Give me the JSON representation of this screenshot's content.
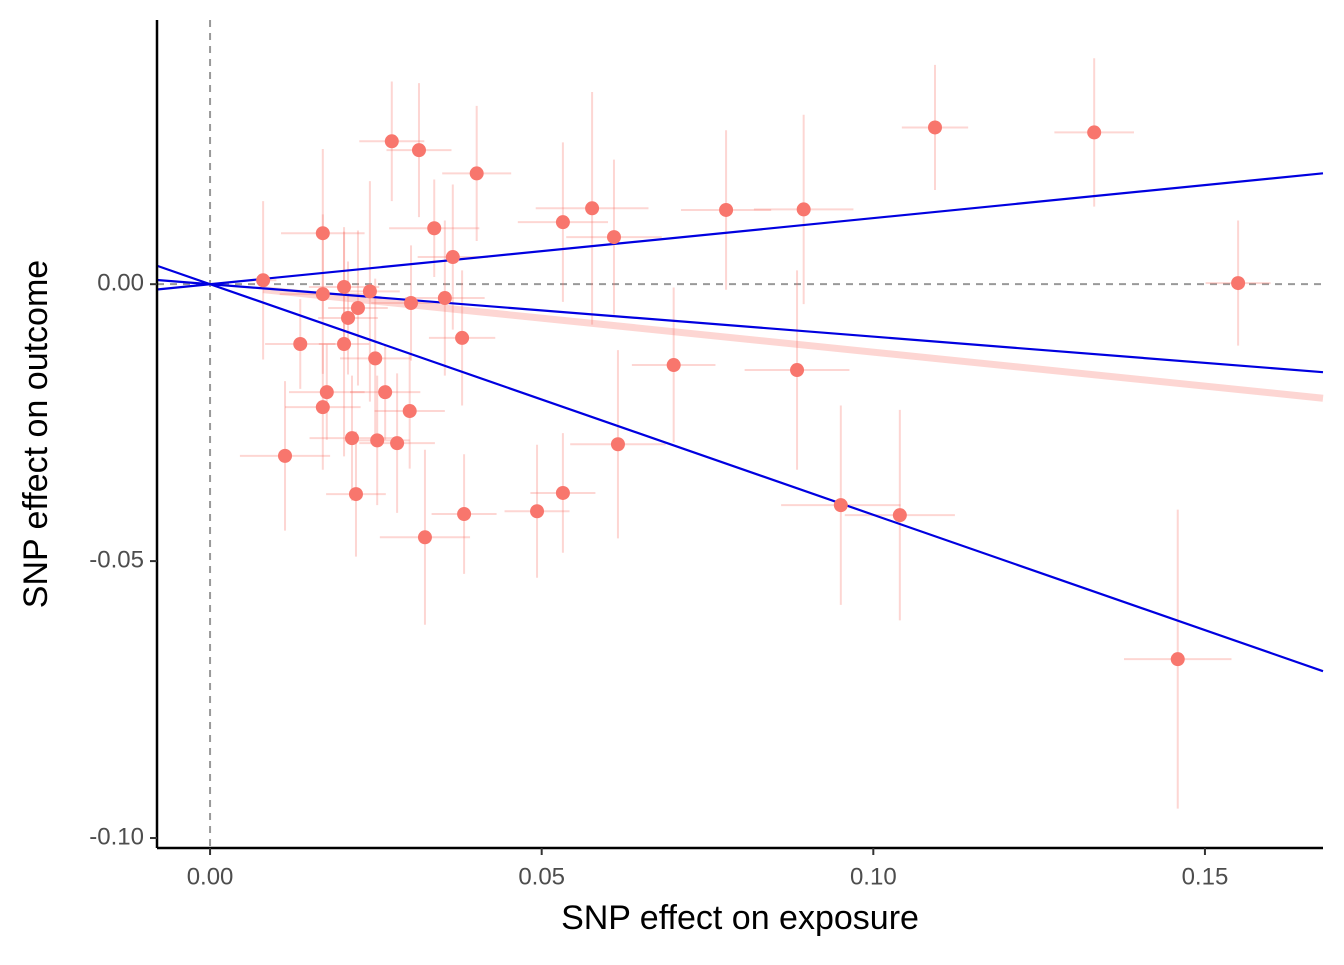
{
  "chart_data": {
    "type": "scatter",
    "x_label": "SNP effect on exposure",
    "y_label": "SNP effect on outcome",
    "xlim": [
      -0.008,
      0.1678
    ],
    "ylim": [
      -0.1018,
      0.0477
    ],
    "xticks": [
      {
        "value": 0,
        "label": "0.00"
      },
      {
        "value": 0.05,
        "label": "0.05"
      },
      {
        "value": 0.1,
        "label": "0.10"
      },
      {
        "value": 0.15,
        "label": "0.15"
      }
    ],
    "yticks": [
      {
        "value": -0.1,
        "label": "-0.10"
      },
      {
        "value": -0.05,
        "label": "-0.05"
      },
      {
        "value": 0,
        "label": "0.00"
      }
    ],
    "grid": false,
    "reference_lines": {
      "x": 0,
      "y": 0,
      "color": "#999999"
    },
    "point_color": "#F8766D",
    "x": [
      0.008,
      0.0274,
      0.0315,
      0.0402,
      0.0338,
      0.0366,
      0.017,
      0.017,
      0.0202,
      0.0223,
      0.0208,
      0.0241,
      0.0303,
      0.0354,
      0.038,
      0.0136,
      0.0202,
      0.0249,
      0.0176,
      0.0264,
      0.017,
      0.0301,
      0.0113,
      0.0214,
      0.0252,
      0.0282,
      0.022,
      0.0324,
      0.0383,
      0.0493,
      0.0532,
      0.0532,
      0.0576,
      0.0609,
      0.0615,
      0.0699,
      0.0778,
      0.0895,
      0.0885,
      0.0951,
      0.104,
      0.1093,
      0.1333,
      0.155,
      0.1459
    ],
    "y": [
      0.0007,
      0.0258,
      0.0242,
      0.02,
      0.0101,
      0.0049,
      0.0092,
      -0.0018,
      -0.0005,
      -0.0043,
      -0.0061,
      -0.0013,
      -0.0034,
      -0.0025,
      -0.0097,
      -0.0108,
      -0.0108,
      -0.0134,
      -0.0195,
      -0.0195,
      -0.0222,
      -0.0229,
      -0.031,
      -0.0278,
      -0.0282,
      -0.0287,
      -0.0379,
      -0.0457,
      -0.0415,
      -0.041,
      -0.0377,
      0.0112,
      0.0137,
      0.0085,
      -0.0289,
      -0.0146,
      0.0134,
      0.0135,
      -0.0155,
      -0.0399,
      -0.0417,
      0.0283,
      0.0274,
      0.0002,
      -0.0677
    ],
    "x_se": [
      0.002,
      0.0049,
      0.0049,
      0.0052,
      0.0068,
      0.0053,
      0.0063,
      0.0065,
      0.0053,
      0.0045,
      0.0045,
      0.0045,
      0.006,
      0.006,
      0.005,
      0.0053,
      0.0038,
      0.0053,
      0.0057,
      0.0053,
      0.0057,
      0.0053,
      0.0068,
      0.0064,
      0.0049,
      0.0057,
      0.0045,
      0.0068,
      0.0049,
      0.0049,
      0.0049,
      0.0068,
      0.0085,
      0.0072,
      0.0072,
      0.0063,
      0.0068,
      0.0075,
      0.0079,
      0.009,
      0.0083,
      0.005,
      0.006,
      0.0049,
      0.0081
    ],
    "y_se": [
      0.0143,
      0.0108,
      0.0121,
      0.0122,
      0.0088,
      0.0131,
      0.0152,
      0.0144,
      0.0108,
      0.014,
      0.0102,
      0.0199,
      0.0104,
      0.014,
      0.0122,
      0.0081,
      0.0203,
      0.0144,
      0.0086,
      0.0086,
      0.0113,
      0.0104,
      0.0135,
      0.0113,
      0.0117,
      0.0126,
      0.0113,
      0.0158,
      0.0108,
      0.012,
      0.0108,
      0.0144,
      0.021,
      0.014,
      0.017,
      0.014,
      0.0144,
      0.0171,
      0.018,
      0.018,
      0.019,
      0.0113,
      0.0134,
      0.0113,
      0.027
    ],
    "fit_lines": [
      {
        "slope": 0.1193,
        "color": "#0000E0"
      },
      {
        "slope": -0.0947,
        "color": "#0000E0"
      },
      {
        "slope": -0.4164,
        "color": "#0000E0"
      }
    ],
    "trend_line": {
      "slope": -0.1227,
      "color": "#F8766D"
    }
  }
}
